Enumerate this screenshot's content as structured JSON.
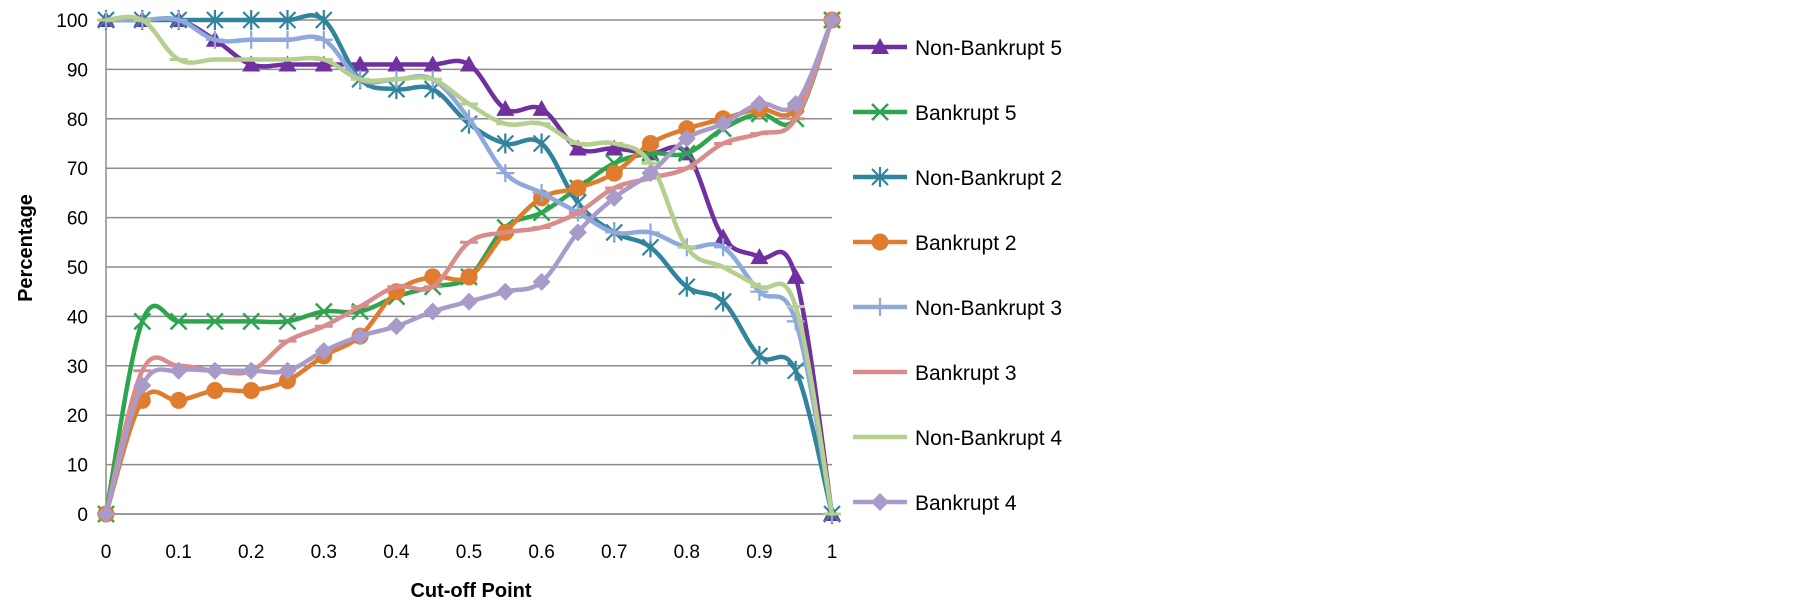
{
  "chart_data": {
    "type": "line",
    "title": "",
    "xlabel": "Cut-off Point",
    "ylabel": "Percentage",
    "xlim": [
      0,
      1
    ],
    "ylim": [
      0,
      100
    ],
    "grid": "horizontal",
    "legend_position": "right",
    "x_ticks": [
      "0",
      "0.1",
      "0.2",
      "0.3",
      "0.4",
      "0.5",
      "0.6",
      "0.7",
      "0.8",
      "0.9",
      "1"
    ],
    "y_ticks": [
      "0",
      "10",
      "20",
      "30",
      "40",
      "50",
      "60",
      "70",
      "80",
      "90",
      "100"
    ],
    "x": [
      0,
      0.05,
      0.1,
      0.15,
      0.2,
      0.25,
      0.3,
      0.35,
      0.4,
      0.45,
      0.5,
      0.55,
      0.6,
      0.65,
      0.7,
      0.75,
      0.8,
      0.85,
      0.9,
      0.95,
      1
    ],
    "series": [
      {
        "name": "Non-Bankrupt 5",
        "color": "#7030a0",
        "marker": "triangle",
        "values": [
          100,
          100,
          100,
          96,
          91,
          91,
          91,
          91,
          91,
          91,
          91,
          82,
          82,
          74,
          74,
          73,
          73,
          56,
          52,
          48,
          0
        ]
      },
      {
        "name": "Bankrupt 5",
        "color": "#2ea44f",
        "marker": "x",
        "values": [
          0,
          39,
          39,
          39,
          39,
          39,
          41,
          41,
          44,
          46,
          48,
          58,
          61,
          66,
          71,
          73,
          73,
          78,
          81,
          80,
          100
        ]
      },
      {
        "name": "Non-Bankrupt 2",
        "color": "#31849b",
        "marker": "asterisk",
        "values": [
          100,
          100,
          100,
          100,
          100,
          100,
          100,
          88,
          86,
          86,
          79,
          75,
          75,
          63,
          57,
          54,
          46,
          43,
          32,
          29,
          0
        ]
      },
      {
        "name": "Bankrupt 2",
        "color": "#e07c2e",
        "marker": "circle",
        "values": [
          0,
          23,
          23,
          25,
          25,
          27,
          32,
          36,
          45,
          48,
          48,
          57,
          64,
          66,
          69,
          75,
          78,
          80,
          82,
          82,
          100
        ]
      },
      {
        "name": "Non-Bankrupt 3",
        "color": "#8ea9db",
        "marker": "plus",
        "values": [
          100,
          100,
          100,
          96,
          96,
          96,
          96,
          88,
          88,
          88,
          80,
          69,
          65,
          61,
          57,
          57,
          54,
          54,
          45,
          39,
          0
        ]
      },
      {
        "name": "Bankrupt 3",
        "color": "#d98c8c",
        "marker": "dash",
        "values": [
          0,
          29,
          30,
          29,
          29,
          35,
          38,
          42,
          46,
          46,
          55,
          57,
          58,
          61,
          66,
          68,
          70,
          75,
          77,
          80,
          100
        ]
      },
      {
        "name": "Non-Bankrupt 4",
        "color": "#b5cf8e",
        "marker": "dash",
        "values": [
          100,
          100,
          92,
          92,
          92,
          92,
          92,
          88,
          88,
          88,
          83,
          79,
          79,
          75,
          75,
          71,
          54,
          50,
          46,
          42,
          0
        ]
      },
      {
        "name": "Bankrupt 4",
        "color": "#a99bc9",
        "marker": "diamond",
        "values": [
          0,
          26,
          29,
          29,
          29,
          29,
          33,
          36,
          38,
          41,
          43,
          45,
          47,
          57,
          64,
          69,
          76,
          79,
          83,
          83,
          100
        ]
      }
    ]
  }
}
